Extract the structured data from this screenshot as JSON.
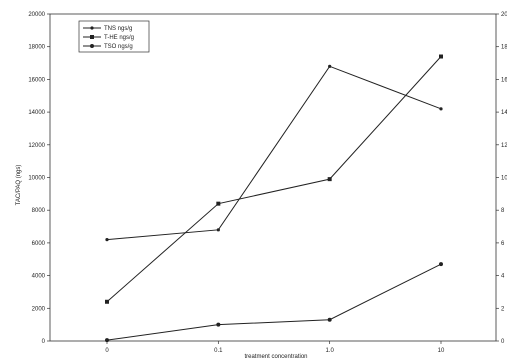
{
  "chart_data": {
    "type": "line",
    "title": "",
    "xlabel": "treatment concentration",
    "ylabel": "TAC/PAQ (ngs)",
    "y2label": "",
    "categories": [
      "0",
      "0.1",
      "1.0",
      "10"
    ],
    "ylim": [
      0,
      20000
    ],
    "yticks": [
      "0",
      "2000",
      "4000",
      "6000",
      "8000",
      "10000",
      "12000",
      "14000",
      "16000",
      "18000",
      "20000"
    ],
    "y2lim": [
      0,
      20
    ],
    "y2ticks": [
      "0",
      "2",
      "4",
      "6",
      "8",
      "10",
      "12",
      "14",
      "16",
      "18",
      "20"
    ],
    "grid": false,
    "legend": "top-left",
    "series": [
      {
        "name": "TNS ngs/g",
        "axis": "left",
        "marker": "none",
        "values": [
          6200,
          6800,
          16800,
          14200
        ]
      },
      {
        "name": "T-HE ngs/g",
        "axis": "left",
        "marker": "square",
        "values": [
          2400,
          8400,
          9900,
          17400
        ]
      },
      {
        "name": "TSO ngs/g",
        "axis": "left",
        "marker": "circle",
        "values": [
          50,
          1000,
          1300,
          4700
        ]
      }
    ]
  }
}
